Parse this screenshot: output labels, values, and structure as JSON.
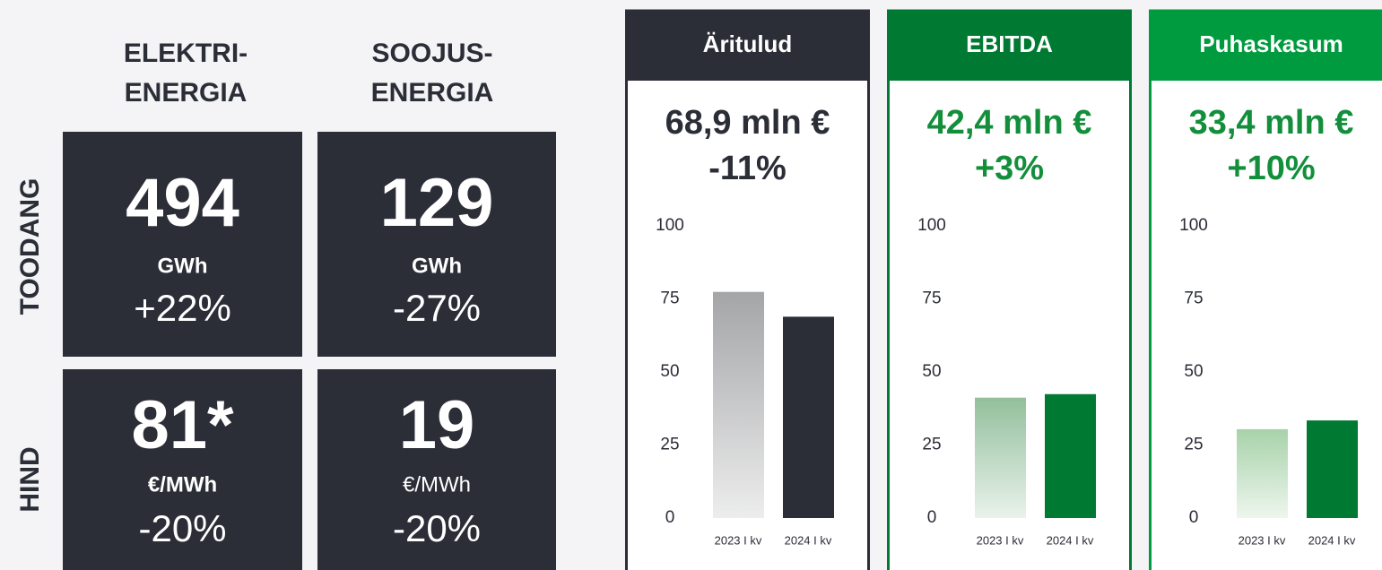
{
  "kpi": {
    "columns": [
      [
        "ELEKTRI-",
        "ENERGIA"
      ],
      [
        "SOOJUS-",
        "ENERGIA"
      ]
    ],
    "rows": [
      "TOODANG",
      "HIND"
    ],
    "tiles": [
      {
        "value": "494",
        "unit": "GWh",
        "change": "+22%"
      },
      {
        "value": "129",
        "unit": "GWh",
        "change": "-27%"
      },
      {
        "value": "81*",
        "unit": "€/MWh",
        "change": "-20%"
      },
      {
        "value": "19",
        "unit": "€/MWh",
        "change": "-20%"
      }
    ]
  },
  "chart_data": [
    {
      "type": "bar",
      "title": "Äritulud",
      "headline": "68,9 mln €",
      "change": "-11%",
      "header_color": "#2b2d37",
      "text_color": "#2b2d37",
      "categories": [
        "2023 I kv",
        "2024 I kv"
      ],
      "values": [
        77.4,
        68.9
      ],
      "colors": [
        "#a4a5a7",
        "#2b2d37"
      ],
      "ylim": [
        0,
        100
      ],
      "yticks": [
        0,
        25,
        50,
        75,
        100
      ]
    },
    {
      "type": "bar",
      "title": "EBITDA",
      "headline": "42,4 mln €",
      "change": "+3%",
      "header_color": "#007a33",
      "text_color": "#138f3c",
      "categories": [
        "2023 I kv",
        "2024 I kv"
      ],
      "values": [
        41.2,
        42.4
      ],
      "colors": [
        "#93bf9c",
        "#007a33"
      ],
      "ylim": [
        0,
        100
      ],
      "yticks": [
        0,
        25,
        50,
        75,
        100
      ]
    },
    {
      "type": "bar",
      "title": "Puhaskasum",
      "headline": "33,4 mln €",
      "change": "+10%",
      "header_color": "#009b3e",
      "text_color": "#138f3c",
      "categories": [
        "2023 I kv",
        "2024 I kv"
      ],
      "values": [
        30.4,
        33.4
      ],
      "colors": [
        "#a7d2a9",
        "#007a33"
      ],
      "ylim": [
        0,
        100
      ],
      "yticks": [
        0,
        25,
        50,
        75,
        100
      ]
    }
  ]
}
